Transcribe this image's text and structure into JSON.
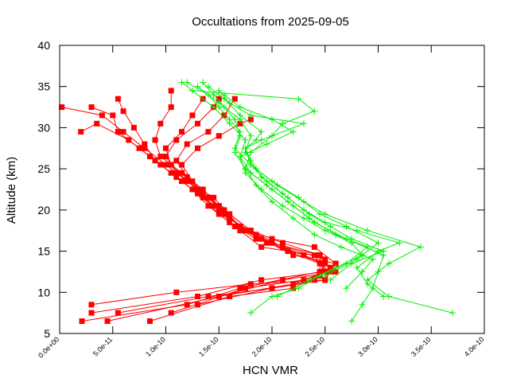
{
  "chart_data": {
    "type": "scatter",
    "title": "Occultations from 2025-09-05",
    "xlabel": "HCN VMR",
    "ylabel": "Altitude (km)",
    "xlim": [
      0,
      4e-10
    ],
    "ylim": [
      5,
      40
    ],
    "x_ticks": [
      {
        "value": 0.0,
        "label": "0.0e+00"
      },
      {
        "value": 5e-11,
        "label": "5.0e-11"
      },
      {
        "value": 1e-10,
        "label": "1.0e-10"
      },
      {
        "value": 1.5e-10,
        "label": "1.5e-10"
      },
      {
        "value": 2e-10,
        "label": "2.0e-10"
      },
      {
        "value": 2.5e-10,
        "label": "2.5e-10"
      },
      {
        "value": 3e-10,
        "label": "3.0e-10"
      },
      {
        "value": 3.5e-10,
        "label": "3.5e-10"
      },
      {
        "value": 4e-10,
        "label": "4.0e-10"
      }
    ],
    "y_ticks": [
      {
        "value": 5,
        "label": "5"
      },
      {
        "value": 10,
        "label": "10"
      },
      {
        "value": 15,
        "label": "15"
      },
      {
        "value": 20,
        "label": "20"
      },
      {
        "value": 25,
        "label": "25"
      },
      {
        "value": 30,
        "label": "30"
      },
      {
        "value": 35,
        "label": "35"
      },
      {
        "value": 40,
        "label": "40"
      }
    ],
    "grid": false,
    "legend": "none",
    "series": [
      {
        "color": "#ff0000",
        "marker": "square",
        "points": [
          [
            2.1e-11,
            6.5
          ],
          [
            1.2e-10,
            8.5
          ],
          [
            1.7e-10,
            10.5
          ],
          [
            2.45e-10,
            12.5
          ],
          [
            2.45e-10,
            14.5
          ],
          [
            1.85e-10,
            16.5
          ],
          [
            1.6e-10,
            18.5
          ],
          [
            1.4e-10,
            20.5
          ],
          [
            1.25e-10,
            22.5
          ],
          [
            1.05e-10,
            24.5
          ],
          [
            8.5e-11,
            26.5
          ],
          [
            6.5e-11,
            28.5
          ],
          [
            3.5e-11,
            30.5
          ],
          [
            2e-11,
            29.5
          ]
        ]
      },
      {
        "color": "#ff0000",
        "marker": "square",
        "points": [
          [
            3e-11,
            7.5
          ],
          [
            1.3e-10,
            9.5
          ],
          [
            1.9e-10,
            11.5
          ],
          [
            2.5e-10,
            12.5
          ],
          [
            2.4e-10,
            14.5
          ],
          [
            1.9e-10,
            15.5
          ],
          [
            1.7e-10,
            17.5
          ],
          [
            1.5e-10,
            19.5
          ],
          [
            1.35e-10,
            21.5
          ],
          [
            1.15e-10,
            23.5
          ],
          [
            9.5e-11,
            25.5
          ],
          [
            7.5e-11,
            27.5
          ],
          [
            5.5e-11,
            29.5
          ],
          [
            5e-11,
            31.5
          ],
          [
            3e-11,
            32.5
          ]
        ]
      },
      {
        "color": "#ff0000",
        "marker": "square",
        "points": [
          [
            4.5e-11,
            6.5
          ],
          [
            1.5e-10,
            9.5
          ],
          [
            2.1e-10,
            11.5
          ],
          [
            2.6e-10,
            12.5
          ],
          [
            2.5e-10,
            13.5
          ],
          [
            2.1e-10,
            15.5
          ],
          [
            1.8e-10,
            17.5
          ],
          [
            1.6e-10,
            19.5
          ],
          [
            1.45e-10,
            21.5
          ],
          [
            1.2e-10,
            23.5
          ],
          [
            1e-10,
            25.5
          ],
          [
            8e-11,
            27.5
          ],
          [
            6e-11,
            29.5
          ],
          [
            4e-11,
            31.5
          ],
          [
            2e-12,
            32.5
          ]
        ]
      },
      {
        "color": "#ff0000",
        "marker": "square",
        "points": [
          [
            3e-11,
            8.5
          ],
          [
            1.1e-10,
            10.0
          ],
          [
            1.8e-10,
            11.0
          ],
          [
            2.5e-10,
            11.5
          ],
          [
            2.6e-10,
            13.5
          ],
          [
            2.2e-10,
            14.5
          ],
          [
            1.9e-10,
            16.5
          ],
          [
            1.65e-10,
            18.0
          ],
          [
            1.5e-10,
            20.0
          ],
          [
            1.3e-10,
            22.0
          ],
          [
            1.1e-10,
            24.0
          ],
          [
            9e-11,
            26.0
          ],
          [
            8e-11,
            28.0
          ],
          [
            7e-11,
            30.0
          ],
          [
            6e-11,
            32.0
          ],
          [
            5.5e-11,
            33.5
          ]
        ]
      },
      {
        "color": "#ff0000",
        "marker": "square",
        "points": [
          [
            5.5e-11,
            7.5
          ],
          [
            1.4e-10,
            9.5
          ],
          [
            2e-10,
            10.5
          ],
          [
            2.5e-10,
            11.5
          ],
          [
            2.55e-10,
            13.0
          ],
          [
            2.3e-10,
            14.5
          ],
          [
            1.95e-10,
            16.0
          ],
          [
            1.7e-10,
            18.0
          ],
          [
            1.5e-10,
            20.5
          ],
          [
            1.35e-10,
            22.5
          ],
          [
            1.15e-10,
            24.5
          ],
          [
            9.5e-11,
            26.5
          ],
          [
            9e-11,
            28.5
          ],
          [
            9.5e-11,
            30.5
          ],
          [
            1.05e-10,
            32.5
          ],
          [
            1.05e-10,
            34.5
          ]
        ]
      },
      {
        "color": "#ff0000",
        "marker": "square",
        "points": [
          [
            8.5e-11,
            6.5
          ],
          [
            1.6e-10,
            9.5
          ],
          [
            2.2e-10,
            10.5
          ],
          [
            2.45e-10,
            12.0
          ],
          [
            2.5e-10,
            14.0
          ],
          [
            2e-10,
            16.0
          ],
          [
            1.75e-10,
            17.5
          ],
          [
            1.55e-10,
            19.5
          ],
          [
            1.4e-10,
            21.5
          ],
          [
            1.2e-10,
            23.5
          ],
          [
            1.05e-10,
            25.5
          ],
          [
            1e-10,
            27.5
          ],
          [
            1.15e-10,
            29.5
          ],
          [
            1.25e-10,
            31.5
          ],
          [
            1.35e-10,
            33.5
          ]
        ]
      },
      {
        "color": "#ff0000",
        "marker": "square",
        "points": [
          [
            1.05e-10,
            7.5
          ],
          [
            1.75e-10,
            10.5
          ],
          [
            2.3e-10,
            11.5
          ],
          [
            2.55e-10,
            12.5
          ],
          [
            2.45e-10,
            13.5
          ],
          [
            2.15e-10,
            15.0
          ],
          [
            1.85e-10,
            17.0
          ],
          [
            1.6e-10,
            19.0
          ],
          [
            1.45e-10,
            20.5
          ],
          [
            1.3e-10,
            22.5
          ],
          [
            1.1e-10,
            24.5
          ],
          [
            1e-10,
            26.5
          ],
          [
            1.1e-10,
            28.5
          ],
          [
            1.3e-10,
            30.5
          ],
          [
            1.45e-10,
            32.5
          ],
          [
            1.5e-10,
            33.5
          ]
        ]
      },
      {
        "color": "#ff0000",
        "marker": "square",
        "points": [
          [
            1.3e-10,
            8.5
          ],
          [
            2e-10,
            10.5
          ],
          [
            2.4e-10,
            11.5
          ],
          [
            2.6e-10,
            13.5
          ],
          [
            2.4e-10,
            15.5
          ],
          [
            2e-10,
            16.5
          ],
          [
            1.7e-10,
            18.0
          ],
          [
            1.55e-10,
            20.0
          ],
          [
            1.35e-10,
            22.0
          ],
          [
            1.2e-10,
            24.0
          ],
          [
            1.1e-10,
            26.0
          ],
          [
            1.2e-10,
            28.0
          ],
          [
            1.4e-10,
            29.5
          ],
          [
            1.55e-10,
            31.5
          ],
          [
            1.65e-10,
            33.5
          ]
        ]
      },
      {
        "color": "#ff0000",
        "marker": "square",
        "points": [
          [
            1.5e-10,
            9.5
          ],
          [
            2.2e-10,
            11.0
          ],
          [
            2.5e-10,
            12.5
          ],
          [
            2.45e-10,
            14.5
          ],
          [
            2.1e-10,
            16.0
          ],
          [
            1.8e-10,
            17.5
          ],
          [
            1.6e-10,
            19.5
          ],
          [
            1.4e-10,
            21.5
          ],
          [
            1.25e-10,
            23.5
          ],
          [
            1.15e-10,
            25.5
          ],
          [
            1.3e-10,
            27.5
          ],
          [
            1.5e-10,
            29.0
          ],
          [
            1.7e-10,
            30.5
          ],
          [
            1.8e-10,
            31.0
          ]
        ]
      },
      {
        "color": "#00ee00",
        "marker": "plus",
        "points": [
          [
            2.75e-10,
            6.5
          ],
          [
            2.85e-10,
            8.5
          ],
          [
            2.95e-10,
            10.5
          ],
          [
            3e-10,
            12.5
          ],
          [
            3.05e-10,
            14.5
          ],
          [
            2.7e-10,
            16.5
          ],
          [
            2.4e-10,
            18.5
          ],
          [
            2.2e-10,
            20.5
          ],
          [
            2e-10,
            22.5
          ],
          [
            1.8e-10,
            24.5
          ],
          [
            1.7e-10,
            26.5
          ],
          [
            1.75e-10,
            28.5
          ],
          [
            1.6e-10,
            30.5
          ],
          [
            1.45e-10,
            32.5
          ],
          [
            1.25e-10,
            34.5
          ],
          [
            1.15e-10,
            35.5
          ]
        ]
      },
      {
        "color": "#00ee00",
        "marker": "plus",
        "points": [
          [
            3.7e-10,
            7.5
          ],
          [
            3.1e-10,
            9.5
          ],
          [
            2.9e-10,
            11.5
          ],
          [
            3.1e-10,
            13.5
          ],
          [
            3.4e-10,
            15.5
          ],
          [
            2.9e-10,
            17.5
          ],
          [
            2.5e-10,
            19.5
          ],
          [
            2.3e-10,
            21.0
          ],
          [
            2.05e-10,
            23.0
          ],
          [
            1.85e-10,
            25.0
          ],
          [
            1.75e-10,
            27.0
          ],
          [
            1.8e-10,
            29.0
          ],
          [
            1.7e-10,
            31.0
          ],
          [
            1.5e-10,
            33.0
          ],
          [
            1.3e-10,
            35.0
          ]
        ]
      },
      {
        "color": "#00ee00",
        "marker": "plus",
        "points": [
          [
            3.05e-10,
            9.5
          ],
          [
            2.9e-10,
            11.0
          ],
          [
            2.8e-10,
            13.0
          ],
          [
            3e-10,
            15.0
          ],
          [
            3.2e-10,
            16.0
          ],
          [
            2.8e-10,
            17.5
          ],
          [
            2.5e-10,
            18.5
          ],
          [
            2.3e-10,
            20.0
          ],
          [
            2.1e-10,
            22.0
          ],
          [
            1.9e-10,
            24.0
          ],
          [
            1.8e-10,
            26.0
          ],
          [
            1.75e-10,
            27.5
          ],
          [
            1.85e-10,
            28.5
          ],
          [
            1.9e-10,
            29.5
          ],
          [
            1.7e-10,
            31.5
          ],
          [
            1.55e-10,
            33.5
          ],
          [
            1.4e-10,
            35.0
          ]
        ]
      },
      {
        "color": "#00ee00",
        "marker": "plus",
        "points": [
          [
            1.8e-10,
            7.5
          ],
          [
            2e-10,
            9.5
          ],
          [
            2.25e-10,
            10.5
          ],
          [
            2.45e-10,
            12.0
          ],
          [
            2.7e-10,
            13.5
          ],
          [
            2.9e-10,
            15.5
          ],
          [
            2.6e-10,
            17.0
          ],
          [
            2.35e-10,
            19.0
          ],
          [
            2.15e-10,
            21.0
          ],
          [
            1.95e-10,
            23.0
          ],
          [
            1.75e-10,
            25.0
          ],
          [
            1.65e-10,
            27.0
          ],
          [
            1.7e-10,
            29.0
          ],
          [
            1.65e-10,
            31.0
          ],
          [
            1.55e-10,
            32.5
          ],
          [
            1.45e-10,
            34.0
          ],
          [
            1.35e-10,
            35.5
          ]
        ]
      },
      {
        "color": "#00ee00",
        "marker": "plus",
        "points": [
          [
            2.5e-10,
            12.0
          ],
          [
            2.8e-10,
            14.0
          ],
          [
            3e-10,
            16.0
          ],
          [
            2.7e-10,
            18.0
          ],
          [
            2.45e-10,
            19.5
          ],
          [
            2.25e-10,
            21.5
          ],
          [
            2e-10,
            23.5
          ],
          [
            1.8e-10,
            25.5
          ],
          [
            1.75e-10,
            27.5
          ],
          [
            1.9e-10,
            28.5
          ],
          [
            2.3e-10,
            30.5
          ],
          [
            1.8e-10,
            31.5
          ],
          [
            1.6e-10,
            33.0
          ],
          [
            1.5e-10,
            34.5
          ]
        ]
      },
      {
        "color": "#00ee00",
        "marker": "plus",
        "points": [
          [
            2.05e-10,
            9.5
          ],
          [
            2.35e-10,
            11.5
          ],
          [
            2.6e-10,
            13.0
          ],
          [
            2.85e-10,
            14.5
          ],
          [
            2.75e-10,
            16.0
          ],
          [
            2.5e-10,
            17.5
          ],
          [
            2.3e-10,
            19.0
          ],
          [
            2.1e-10,
            20.5
          ],
          [
            1.9e-10,
            22.5
          ],
          [
            1.75e-10,
            24.5
          ],
          [
            1.7e-10,
            26.5
          ],
          [
            1.95e-10,
            28.0
          ],
          [
            2.2e-10,
            29.5
          ],
          [
            2e-10,
            31.0
          ],
          [
            1.7e-10,
            32.5
          ],
          [
            1.55e-10,
            34.0
          ]
        ]
      },
      {
        "color": "#00ee00",
        "marker": "plus",
        "points": [
          [
            2.7e-10,
            10.5
          ],
          [
            2.85e-10,
            12.5
          ],
          [
            2.95e-10,
            14.0
          ],
          [
            2.65e-10,
            15.5
          ],
          [
            2.4e-10,
            17.0
          ],
          [
            2.2e-10,
            19.0
          ],
          [
            2e-10,
            21.0
          ],
          [
            1.85e-10,
            23.0
          ],
          [
            1.75e-10,
            25.0
          ],
          [
            1.8e-10,
            27.0
          ],
          [
            2e-10,
            29.0
          ],
          [
            2.1e-10,
            30.5
          ],
          [
            2.4e-10,
            32.0
          ],
          [
            2.25e-10,
            33.5
          ],
          [
            1.25e-10,
            34.5
          ]
        ]
      },
      {
        "color": "#00ee00",
        "marker": "plus",
        "points": [
          [
            2.55e-10,
            11.5
          ],
          [
            2.75e-10,
            13.5
          ],
          [
            3.05e-10,
            15.0
          ],
          [
            2.75e-10,
            16.5
          ],
          [
            2.55e-10,
            18.0
          ],
          [
            2.35e-10,
            19.5
          ],
          [
            2.15e-10,
            21.5
          ],
          [
            1.95e-10,
            23.5
          ],
          [
            1.8e-10,
            25.5
          ],
          [
            1.65e-10,
            27.5
          ],
          [
            1.7e-10,
            29.5
          ],
          [
            1.6e-10,
            31.0
          ],
          [
            1.5e-10,
            32.5
          ],
          [
            1.4e-10,
            34.0
          ],
          [
            1.2e-10,
            35.5
          ]
        ]
      }
    ]
  }
}
